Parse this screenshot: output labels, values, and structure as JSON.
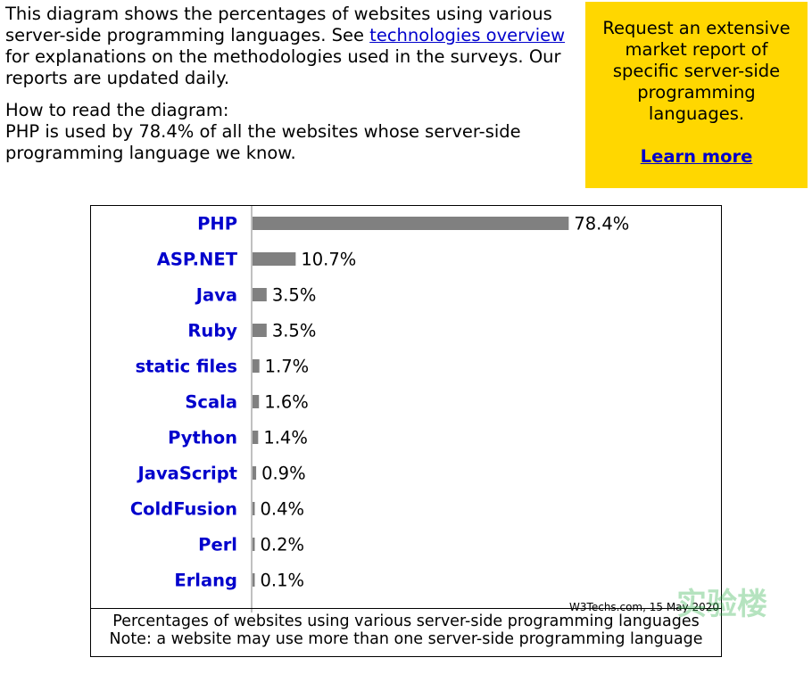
{
  "intro": {
    "p1_part1": "This diagram shows the percentages of websites using various server-side programming languages. See ",
    "p1_link": "technologies overview",
    "p1_part2": " for explanations on the methodologies used in the surveys. Our reports are updated daily.",
    "p2_line1": "How to read the diagram:",
    "p2_line2": "PHP is used by 78.4% of all the websites whose server-side programming language we know."
  },
  "promo": {
    "text": "Request an extensive market report of specific server-side programming languages.",
    "link": "Learn more",
    "bg_color": "#ffd700"
  },
  "chart_data": {
    "type": "bar",
    "orientation": "horizontal",
    "categories": [
      "PHP",
      "ASP.NET",
      "Java",
      "Ruby",
      "static files",
      "Scala",
      "Python",
      "JavaScript",
      "ColdFusion",
      "Perl",
      "Erlang"
    ],
    "values": [
      78.4,
      10.7,
      3.5,
      3.5,
      1.7,
      1.6,
      1.4,
      0.9,
      0.4,
      0.2,
      0.1
    ],
    "value_labels": [
      "78.4%",
      "10.7%",
      "3.5%",
      "3.5%",
      "1.7%",
      "1.6%",
      "1.4%",
      "0.9%",
      "0.4%",
      "0.2%",
      "0.1%"
    ],
    "xlim": [
      0,
      100
    ],
    "bar_color": "#808080",
    "label_color": "#0000cc",
    "credit": "W3Techs.com, 15 May 2020",
    "caption": "Percentages of websites using various server-side programming languages",
    "note": "Note: a website may use more than one server-side programming language"
  }
}
